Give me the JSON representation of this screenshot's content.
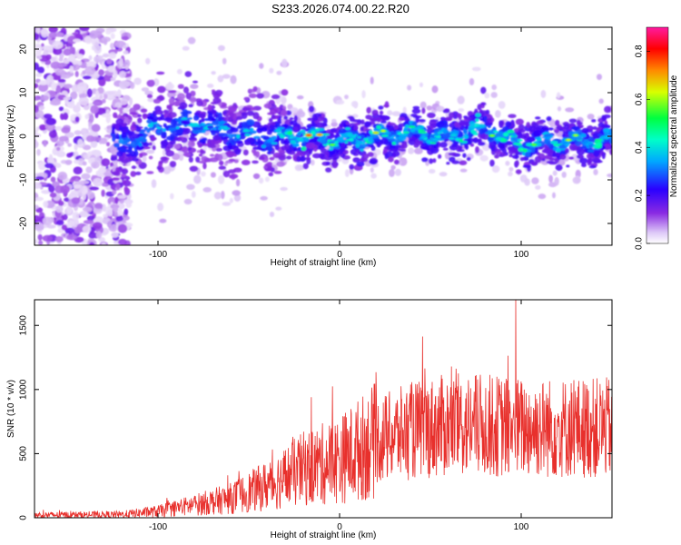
{
  "title": "S233.2026.074.00.22.R20",
  "chart_data": [
    {
      "type": "heatmap",
      "xlabel": "Height of straight line (km)",
      "ylabel": "Frequency (Hz)",
      "xlim": [
        -168,
        150
      ],
      "ylim": [
        -25,
        25
      ],
      "x_ticks": [
        -100,
        0,
        100
      ],
      "y_ticks": [
        -20,
        -10,
        0,
        10,
        20
      ],
      "colorbar": {
        "label": "Normalized spectral amplitude",
        "range": [
          0,
          0.9
        ],
        "ticks": [
          0.0,
          0.2,
          0.4,
          0.6,
          0.8
        ],
        "colormap": "rainbow (white-lavender-purple-blue-cyan-green-yellow-red-magenta)"
      },
      "ridge_center_hz": [
        {
          "x": -120,
          "y": -2
        },
        {
          "x": -100,
          "y": 2
        },
        {
          "x": -80,
          "y": 3
        },
        {
          "x": -60,
          "y": 1
        },
        {
          "x": -40,
          "y": 0
        },
        {
          "x": -20,
          "y": 0
        },
        {
          "x": 0,
          "y": -1
        },
        {
          "x": 20,
          "y": 0
        },
        {
          "x": 40,
          "y": 1
        },
        {
          "x": 60,
          "y": 0
        },
        {
          "x": 80,
          "y": 2
        },
        {
          "x": 100,
          "y": -2
        },
        {
          "x": 120,
          "y": -1
        },
        {
          "x": 140,
          "y": -1
        }
      ]
    },
    {
      "type": "line",
      "xlabel": "Height of straight line (km)",
      "ylabel": "SNR (10 * v/v)",
      "xlim": [
        -168,
        150
      ],
      "ylim": [
        0,
        1700
      ],
      "x_ticks": [
        -100,
        0,
        100
      ],
      "y_ticks": [
        0,
        500,
        1000,
        1500
      ],
      "color": "#e8302c",
      "trend": [
        {
          "x": -168,
          "y": 20
        },
        {
          "x": -120,
          "y": 25
        },
        {
          "x": -100,
          "y": 50
        },
        {
          "x": -80,
          "y": 100
        },
        {
          "x": -60,
          "y": 150
        },
        {
          "x": -40,
          "y": 250
        },
        {
          "x": -20,
          "y": 380
        },
        {
          "x": 0,
          "y": 450
        },
        {
          "x": 20,
          "y": 600
        },
        {
          "x": 40,
          "y": 680
        },
        {
          "x": 60,
          "y": 720
        },
        {
          "x": 80,
          "y": 720
        },
        {
          "x": 100,
          "y": 700
        },
        {
          "x": 120,
          "y": 700
        },
        {
          "x": 150,
          "y": 700
        }
      ],
      "peak": {
        "x": 97,
        "y": 1700
      }
    }
  ]
}
